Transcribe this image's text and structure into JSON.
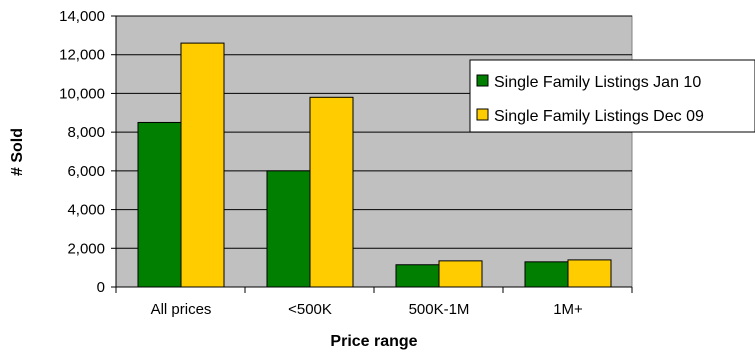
{
  "chart_data": {
    "type": "bar",
    "title": "",
    "xlabel": "Price range",
    "ylabel": "# Sold",
    "categories": [
      "All prices",
      "<500K",
      "500K-1M",
      "1M+"
    ],
    "series": [
      {
        "name": "Single Family Listings Jan 10",
        "values": [
          8500,
          6000,
          1150,
          1300
        ],
        "color": "#007F00"
      },
      {
        "name": "Single Family Listings Dec 09",
        "values": [
          12600,
          9800,
          1350,
          1400
        ],
        "color": "#FFCC00"
      }
    ],
    "ylim": [
      0,
      14000
    ],
    "yticks": [
      "0",
      "2,000",
      "4,000",
      "6,000",
      "8,000",
      "10,000",
      "12,000",
      "14,000"
    ],
    "grid": true,
    "plot_background": "#C0C0C0",
    "legend_position": "right"
  }
}
